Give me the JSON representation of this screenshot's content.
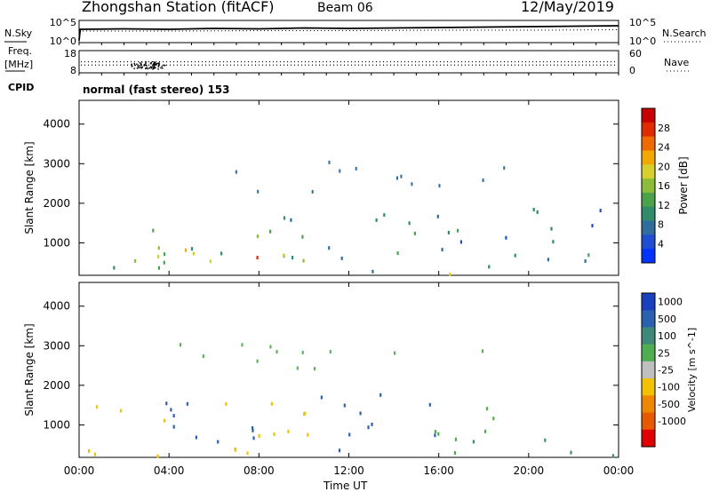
{
  "header": {
    "station": "Zhongshan Station (fitACF)",
    "beam": "Beam 06",
    "date": "12/May/2019"
  },
  "chart_data": [
    {
      "type": "line",
      "panel": "noise",
      "left_label": "N.Sky",
      "right_label": "N.Search",
      "left_ticks": [
        "10^5",
        "10^0"
      ],
      "right_ticks": [
        "10^5",
        "10^0"
      ],
      "series": [
        {
          "name": "N.Sky",
          "style": "solid",
          "x": [
            0.0,
            0.05,
            2.0,
            4.0,
            6.0,
            8.0,
            10.0,
            12.0,
            14.0,
            16.0,
            18.0,
            20.0,
            22.0,
            24.0
          ],
          "y": [
            0.5,
            3.0,
            3.1,
            3.0,
            3.2,
            3.1,
            3.3,
            3.2,
            3.3,
            3.4,
            3.5,
            3.6,
            3.7,
            3.8
          ]
        },
        {
          "name": "N.Search",
          "style": "dotted",
          "x": [
            0.0,
            4.0,
            8.0,
            12.0,
            16.0,
            20.0,
            24.0
          ],
          "y": [
            2.6,
            2.6,
            2.7,
            2.7,
            2.8,
            2.8,
            2.9
          ]
        }
      ]
    },
    {
      "type": "scatter",
      "panel": "frequency-nave",
      "left_label": "Freq.",
      "left_unit": "[MHz]",
      "right_label": "Nave",
      "left_ticks": [
        "18",
        "8"
      ],
      "right_ticks": [
        "60",
        "0"
      ],
      "series": [
        {
          "name": "Freq.",
          "style": "dotted",
          "x": [
            0,
            24
          ],
          "y": [
            11.5,
            11.5
          ]
        },
        {
          "name": "Nave",
          "style": "dotted",
          "x": [
            0,
            24
          ],
          "y": [
            30,
            30
          ]
        }
      ]
    },
    {
      "type": "text",
      "panel": "cpid",
      "label": "CPID",
      "value": "normal (fast stereo) 153"
    },
    {
      "type": "heatmap",
      "panel": "power",
      "ylabel": "Slant Range [km]",
      "colorbar_label": "Power [dB]",
      "y_ticks": [
        1000,
        2000,
        3000,
        4000
      ],
      "ylim": [
        180,
        4600
      ],
      "xlim": [
        0,
        24
      ],
      "colorbar_ticks": [
        4,
        8,
        12,
        16,
        20,
        24,
        28
      ],
      "colorbar_range": [
        0,
        32
      ],
      "colors": [
        "#0033ff",
        "#1f4fd0",
        "#2e6d9e",
        "#2f8c6a",
        "#4aa34a",
        "#8cbd3a",
        "#d6cf2e",
        "#f2a800",
        "#ef6a00",
        "#e02a00",
        "#c80000"
      ],
      "scatter_regions": [
        {
          "t0": 0.2,
          "t1": 10.2,
          "r0": 250,
          "r1": 1600,
          "v": 14
        },
        {
          "t0": 8.2,
          "t1": 9.9,
          "r0": 800,
          "r1": 2000,
          "v": 10
        },
        {
          "t0": 2.8,
          "t1": 8.0,
          "r0": 300,
          "r1": 1100,
          "v": 20
        },
        {
          "t0": 6.3,
          "t1": 8.0,
          "r0": 300,
          "r1": 700,
          "v": 26
        },
        {
          "t0": 10.5,
          "t1": 24.0,
          "r0": 250,
          "r1": 1900,
          "v": 9
        },
        {
          "t0": 15.5,
          "t1": 18.5,
          "r0": 200,
          "r1": 600,
          "v": 18
        },
        {
          "t0": 16.0,
          "t1": 17.2,
          "r0": 200,
          "r1": 380,
          "v": 28
        }
      ]
    },
    {
      "type": "heatmap",
      "panel": "velocity",
      "ylabel": "Slant Range [km]",
      "colorbar_label": "Velocity [m s^-1]",
      "y_ticks": [
        1000,
        2000,
        3000,
        4000
      ],
      "ylim": [
        180,
        4600
      ],
      "xlim": [
        0,
        24
      ],
      "colorbar_ticks": [
        "1000",
        "500",
        "100",
        "25",
        "-25",
        "-100",
        "-500",
        "-1000"
      ],
      "colors": [
        "#1a3fbf",
        "#2a62b0",
        "#3e8a7a",
        "#4fae4f",
        "#bfbfbf",
        "#f2c200",
        "#ef8800",
        "#e85a00",
        "#e00000"
      ],
      "scatter_regions": [
        {
          "t0": 0.2,
          "t1": 10.2,
          "r0": 250,
          "r1": 1600,
          "v": -150
        },
        {
          "t0": 3.5,
          "t1": 9.9,
          "r0": 600,
          "r1": 2000,
          "v": 300
        },
        {
          "t0": 10.5,
          "t1": 16.0,
          "r0": 300,
          "r1": 1900,
          "v": 200
        },
        {
          "t0": 14.0,
          "t1": 19.0,
          "r0": 300,
          "r1": 1500,
          "v": 0
        },
        {
          "t0": 16.5,
          "t1": 24.0,
          "r0": 200,
          "r1": 700,
          "v": 60
        },
        {
          "t0": 0.2,
          "t1": 3.0,
          "r0": 300,
          "r1": 900,
          "v": -300
        }
      ]
    }
  ],
  "x_axis": {
    "ticks": [
      "00:00",
      "04:00",
      "08:00",
      "12:00",
      "16:00",
      "20:00",
      "00:00"
    ],
    "label": "Time UT"
  }
}
